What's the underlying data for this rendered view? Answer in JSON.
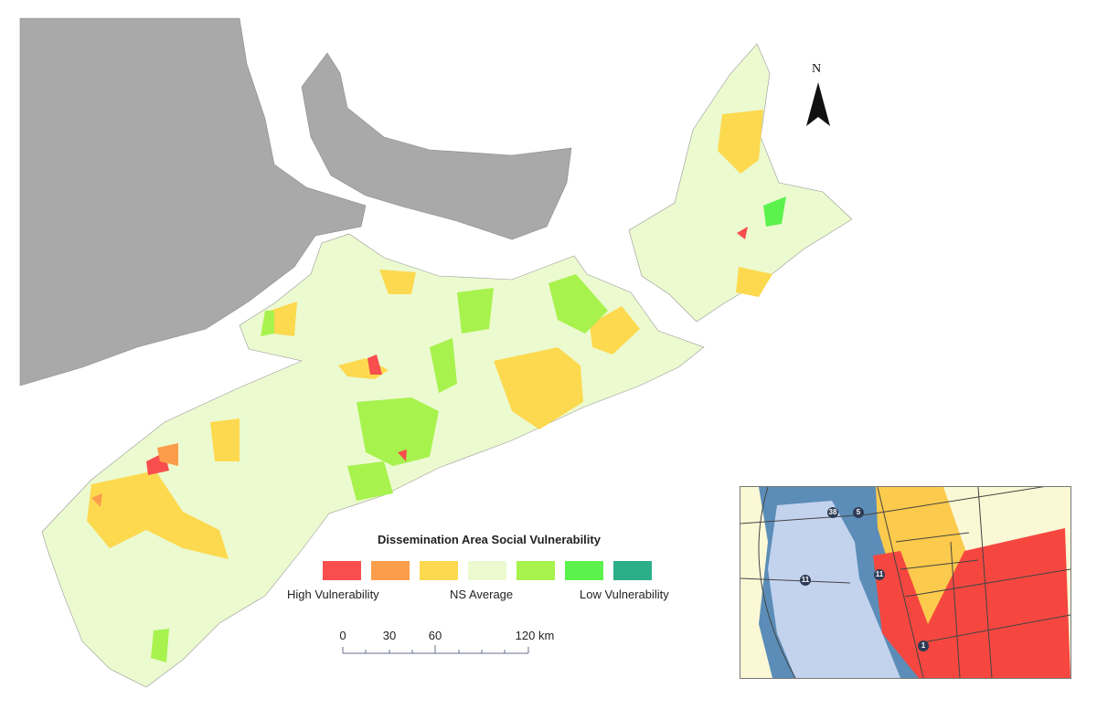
{
  "north_arrow": {
    "label": "N"
  },
  "legend": {
    "title": "Dissemination Area Social Vulnerability",
    "classes": [
      {
        "color": "#f84e4e"
      },
      {
        "color": "#fc9d4b"
      },
      {
        "color": "#fcd94e"
      },
      {
        "color": "#ecfad0"
      },
      {
        "color": "#a7f24d"
      },
      {
        "color": "#5cf24d"
      },
      {
        "color": "#2bae8a"
      }
    ],
    "label_high": "High Vulnerability",
    "label_mid": "NS Average",
    "label_low": "Low Vulnerability"
  },
  "scale_bar": {
    "ticks": [
      "0",
      "30",
      "60",
      "120 km"
    ]
  },
  "colors": {
    "other_land": "#a9a9a9",
    "water": "#ffffff",
    "coast": "#888888"
  },
  "inset": {
    "road_labels": [
      "38",
      "5",
      "11",
      "11",
      "1"
    ],
    "colors": {
      "water": "#c3d3ee",
      "flood": "#5b8db8",
      "land": "#fbf8d6",
      "high": "#f5473f",
      "medium": "#fcca4c"
    }
  }
}
